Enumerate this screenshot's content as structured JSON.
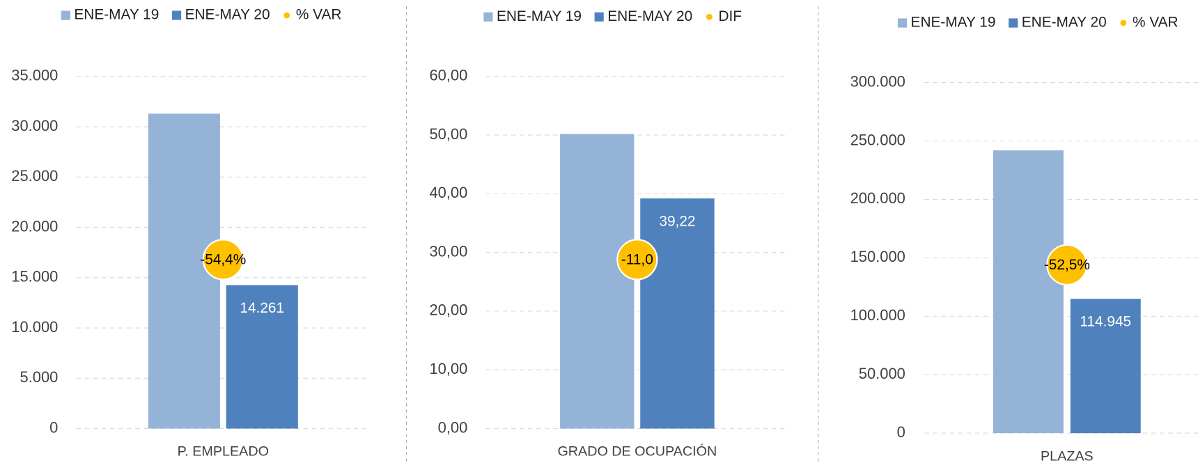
{
  "chart_data": [
    {
      "type": "bar",
      "categories": [
        "P. EMPLEADO"
      ],
      "series": [
        {
          "name": "ENE-MAY 19",
          "color": "#95b3d7",
          "values": [
            31300
          ]
        },
        {
          "name": "ENE-MAY 20",
          "color": "#4f81bd",
          "values": [
            14261
          ],
          "value_labels": [
            "14.261"
          ]
        },
        {
          "name": "% VAR",
          "color": "#ffc000",
          "marker": "bubble",
          "values": [
            -54.4
          ],
          "value_labels": [
            "-54,4%"
          ]
        }
      ],
      "ylim": [
        0,
        35000
      ],
      "yticks": [
        0,
        {
          "value": 5000,
          "label": "5.000"
        },
        {
          "value": 10000,
          "label": "10.000"
        },
        {
          "value": 15000,
          "label": "15.000"
        },
        {
          "value": 20000,
          "label": "20.000"
        },
        {
          "value": 25000,
          "label": "25.000"
        },
        {
          "value": 30000,
          "label": "30.000"
        },
        {
          "value": 35000,
          "label": "35.000"
        }
      ],
      "grid": true
    },
    {
      "type": "bar",
      "categories": [
        "GRADO DE OCUPACIÓN"
      ],
      "series": [
        {
          "name": "ENE-MAY 19",
          "color": "#95b3d7",
          "values": [
            50.2
          ]
        },
        {
          "name": "ENE-MAY 20",
          "color": "#4f81bd",
          "values": [
            39.22
          ],
          "value_labels": [
            "39,22"
          ]
        },
        {
          "name": "DIF",
          "color": "#ffc000",
          "marker": "bubble",
          "values": [
            -11.0
          ],
          "value_labels": [
            "-11,0"
          ]
        }
      ],
      "ylim": [
        0,
        60
      ],
      "yticks": [
        {
          "value": 0,
          "label": "0,00"
        },
        {
          "value": 10,
          "label": "10,00"
        },
        {
          "value": 20,
          "label": "20,00"
        },
        {
          "value": 30,
          "label": "30,00"
        },
        {
          "value": 40,
          "label": "40,00"
        },
        {
          "value": 50,
          "label": "50,00"
        },
        {
          "value": 60,
          "label": "60,00"
        }
      ],
      "grid": true
    },
    {
      "type": "bar",
      "categories": [
        "PLAZAS"
      ],
      "series": [
        {
          "name": "ENE-MAY 19",
          "color": "#95b3d7",
          "values": [
            242000
          ]
        },
        {
          "name": "ENE-MAY 20",
          "color": "#4f81bd",
          "values": [
            114945
          ],
          "value_labels": [
            "114.945"
          ]
        },
        {
          "name": "% VAR",
          "color": "#ffc000",
          "marker": "bubble",
          "values": [
            -52.5
          ],
          "value_labels": [
            "-52,5%"
          ]
        }
      ],
      "ylim": [
        0,
        300000
      ],
      "yticks": [
        0,
        {
          "value": 50000,
          "label": "50.000"
        },
        {
          "value": 100000,
          "label": "100.000"
        },
        {
          "value": 150000,
          "label": "150.000"
        },
        {
          "value": 200000,
          "label": "200.000"
        },
        {
          "value": 250000,
          "label": "250.000"
        },
        {
          "value": 300000,
          "label": "300.000"
        }
      ],
      "grid": true
    }
  ]
}
